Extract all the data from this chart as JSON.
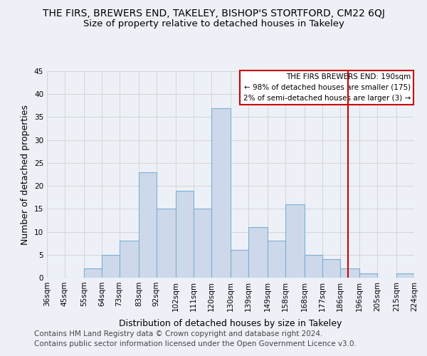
{
  "title": "THE FIRS, BREWERS END, TAKELEY, BISHOP'S STORTFORD, CM22 6QJ",
  "subtitle": "Size of property relative to detached houses in Takeley",
  "xlabel": "Distribution of detached houses by size in Takeley",
  "ylabel": "Number of detached properties",
  "bin_edges": [
    36,
    45,
    55,
    64,
    73,
    83,
    92,
    102,
    111,
    120,
    130,
    139,
    149,
    158,
    168,
    177,
    186,
    196,
    205,
    215,
    224
  ],
  "bin_labels": [
    "36sqm",
    "45sqm",
    "55sqm",
    "64sqm",
    "73sqm",
    "83sqm",
    "92sqm",
    "102sqm",
    "111sqm",
    "120sqm",
    "130sqm",
    "139sqm",
    "149sqm",
    "158sqm",
    "168sqm",
    "177sqm",
    "186sqm",
    "196sqm",
    "205sqm",
    "215sqm",
    "224sqm"
  ],
  "counts": [
    0,
    0,
    2,
    5,
    8,
    23,
    15,
    19,
    15,
    37,
    6,
    11,
    8,
    16,
    5,
    4,
    2,
    1,
    0,
    1
  ],
  "bar_facecolor": "#cdd9ea",
  "bar_edgecolor": "#7bafd4",
  "reference_line_x": 190,
  "reference_line_color": "#cc0000",
  "ylim": [
    0,
    45
  ],
  "yticks": [
    0,
    5,
    10,
    15,
    20,
    25,
    30,
    35,
    40,
    45
  ],
  "grid_color": "#d0d0d0",
  "background_color": "#edf1f7",
  "legend_title": "THE FIRS BREWERS END: 190sqm",
  "legend_line1": "← 98% of detached houses are smaller (175)",
  "legend_line2": "2% of semi-detached houses are larger (3) →",
  "legend_edgecolor": "#cc0000",
  "footer_line1": "Contains HM Land Registry data © Crown copyright and database right 2024.",
  "footer_line2": "Contains public sector information licensed under the Open Government Licence v3.0.",
  "title_fontsize": 10,
  "subtitle_fontsize": 9.5,
  "axis_label_fontsize": 9,
  "tick_fontsize": 7.5,
  "legend_fontsize": 7.5,
  "footer_fontsize": 7.5
}
